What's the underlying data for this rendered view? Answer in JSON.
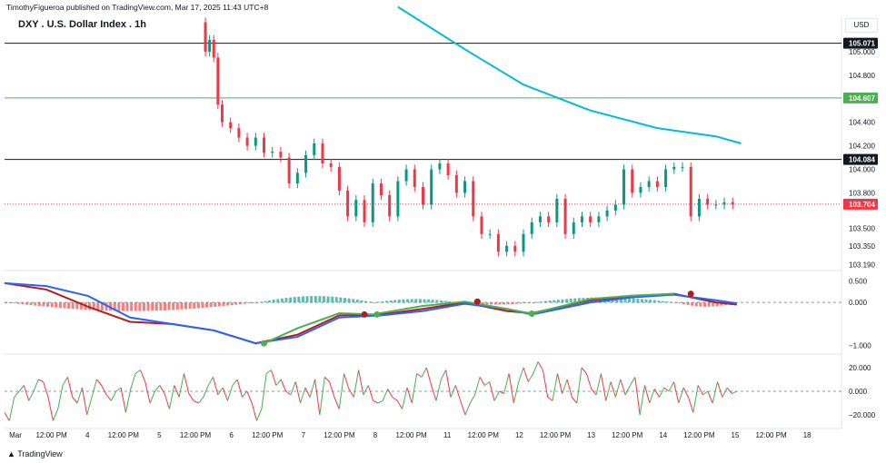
{
  "header": {
    "published": "TimothyFigueroa published on TradingView.com, Mar 17, 2025 11:43 UTC+8",
    "symbol": "DXY . U.S. Dollar Index . 1h",
    "currency": "USD"
  },
  "footer": {
    "brand": "TradingView"
  },
  "chart_data": [
    {
      "type": "candlestick",
      "pane": "price",
      "x_ticks": [
        "Mar",
        "12:00 PM",
        "4",
        "12:00 PM",
        "5",
        "12:00 PM",
        "6",
        "12:00 PM",
        "7",
        "12:00 PM",
        "8",
        "12:00 PM",
        "11",
        "12:00 PM",
        "12",
        "12:00 PM",
        "13",
        "12:00 PM",
        "14",
        "12:00 PM",
        "15",
        "12:00 PM",
        "18"
      ],
      "y_ticks": [
        105.0,
        104.8,
        104.4,
        104.2,
        104.0,
        103.8,
        103.5,
        103.35,
        103.19
      ],
      "y_tick_labels": [
        "105.000",
        "104.800",
        "104.400",
        "104.200",
        "104.000",
        "103.800",
        "103.500",
        "103.350",
        "103.190"
      ],
      "y_range": [
        103.14,
        105.3
      ],
      "levels": [
        {
          "value": 105.071,
          "label": "105.071",
          "color": "#131722"
        },
        {
          "value": 104.607,
          "label": "104.607",
          "color": "#4caf50"
        },
        {
          "value": 104.084,
          "label": "104.084",
          "color": "#131722"
        }
      ],
      "last_price": {
        "value": 103.704,
        "label": "103.704",
        "color": "#f23645"
      },
      "moving_average": {
        "color": "#00bcd4",
        "points": [
          [
            0.47,
            105.38
          ],
          [
            0.55,
            105.02
          ],
          [
            0.62,
            104.72
          ],
          [
            0.7,
            104.5
          ],
          [
            0.78,
            104.35
          ],
          [
            0.85,
            104.28
          ],
          [
            0.88,
            104.22
          ]
        ]
      },
      "close_path": [
        [
          0.235,
          105.25
        ],
        [
          0.24,
          105.0
        ],
        [
          0.245,
          105.1
        ],
        [
          0.25,
          104.95
        ],
        [
          0.255,
          104.55
        ],
        [
          0.26,
          104.4
        ],
        [
          0.27,
          104.35
        ],
        [
          0.28,
          104.27
        ],
        [
          0.29,
          104.2
        ],
        [
          0.3,
          104.27
        ],
        [
          0.31,
          104.14
        ],
        [
          0.32,
          104.15
        ],
        [
          0.33,
          104.1
        ],
        [
          0.34,
          103.88
        ],
        [
          0.35,
          103.97
        ],
        [
          0.36,
          104.12
        ],
        [
          0.37,
          104.22
        ],
        [
          0.38,
          104.05
        ],
        [
          0.39,
          104.02
        ],
        [
          0.4,
          103.82
        ],
        [
          0.41,
          103.6
        ],
        [
          0.42,
          103.74
        ],
        [
          0.43,
          103.55
        ],
        [
          0.44,
          103.88
        ],
        [
          0.45,
          103.78
        ],
        [
          0.46,
          103.6
        ],
        [
          0.47,
          103.9
        ],
        [
          0.48,
          104.0
        ],
        [
          0.49,
          103.85
        ],
        [
          0.5,
          103.7
        ],
        [
          0.51,
          104.0
        ],
        [
          0.52,
          104.05
        ],
        [
          0.53,
          103.95
        ],
        [
          0.54,
          103.8
        ],
        [
          0.55,
          103.9
        ],
        [
          0.56,
          103.6
        ],
        [
          0.57,
          103.45
        ],
        [
          0.58,
          103.45
        ],
        [
          0.59,
          103.3
        ],
        [
          0.6,
          103.35
        ],
        [
          0.61,
          103.3
        ],
        [
          0.62,
          103.45
        ],
        [
          0.63,
          103.55
        ],
        [
          0.64,
          103.6
        ],
        [
          0.65,
          103.55
        ],
        [
          0.66,
          103.75
        ],
        [
          0.67,
          103.45
        ],
        [
          0.68,
          103.55
        ],
        [
          0.69,
          103.6
        ],
        [
          0.7,
          103.55
        ],
        [
          0.71,
          103.6
        ],
        [
          0.72,
          103.65
        ],
        [
          0.73,
          103.7
        ],
        [
          0.74,
          104.0
        ],
        [
          0.75,
          103.8
        ],
        [
          0.76,
          103.85
        ],
        [
          0.77,
          103.9
        ],
        [
          0.78,
          103.85
        ],
        [
          0.79,
          104.0
        ],
        [
          0.8,
          104.02
        ],
        [
          0.81,
          104.02
        ],
        [
          0.82,
          103.6
        ],
        [
          0.83,
          103.75
        ],
        [
          0.84,
          103.7
        ],
        [
          0.85,
          103.7
        ],
        [
          0.86,
          103.72
        ],
        [
          0.87,
          103.7
        ]
      ]
    },
    {
      "type": "line",
      "pane": "macd",
      "y_ticks": [
        0.5,
        0.0,
        -1.0
      ],
      "y_tick_labels": [
        "0.500",
        "0.000",
        "−1.000"
      ],
      "y_range": [
        -1.2,
        0.7
      ],
      "series": [
        {
          "color": "#b71c1c",
          "points": [
            [
              0.0,
              0.45
            ],
            [
              0.05,
              0.3
            ],
            [
              0.1,
              -0.1
            ],
            [
              0.15,
              -0.45
            ],
            [
              0.2,
              -0.5
            ],
            [
              0.25,
              -0.65
            ],
            [
              0.3,
              -0.95
            ],
            [
              0.35,
              -0.75
            ],
            [
              0.4,
              -0.3
            ],
            [
              0.45,
              -0.28
            ],
            [
              0.5,
              -0.15
            ],
            [
              0.55,
              0.0
            ],
            [
              0.6,
              -0.2
            ],
            [
              0.63,
              -0.25
            ],
            [
              0.7,
              0.05
            ],
            [
              0.75,
              0.15
            ],
            [
              0.8,
              0.2
            ],
            [
              0.85,
              0.0
            ],
            [
              0.875,
              -0.05
            ]
          ]
        },
        {
          "color": "#2962ff",
          "points": [
            [
              0.0,
              0.45
            ],
            [
              0.05,
              0.38
            ],
            [
              0.1,
              0.15
            ],
            [
              0.15,
              -0.35
            ],
            [
              0.2,
              -0.5
            ],
            [
              0.25,
              -0.65
            ],
            [
              0.3,
              -0.95
            ],
            [
              0.35,
              -0.8
            ],
            [
              0.4,
              -0.35
            ],
            [
              0.45,
              -0.3
            ],
            [
              0.5,
              -0.2
            ],
            [
              0.55,
              -0.03
            ],
            [
              0.6,
              -0.15
            ],
            [
              0.63,
              -0.28
            ],
            [
              0.7,
              0.0
            ],
            [
              0.75,
              0.12
            ],
            [
              0.8,
              0.18
            ],
            [
              0.85,
              0.05
            ],
            [
              0.875,
              -0.02
            ]
          ]
        },
        {
          "color": "#4caf50",
          "points": [
            [
              0.31,
              -0.95
            ],
            [
              0.35,
              -0.6
            ],
            [
              0.4,
              -0.25
            ],
            [
              0.44,
              -0.28
            ],
            [
              0.5,
              -0.08
            ],
            [
              0.55,
              0.02
            ],
            [
              0.6,
              -0.15
            ],
            [
              0.63,
              -0.26
            ],
            [
              0.7,
              0.08
            ],
            [
              0.75,
              0.16
            ],
            [
              0.8,
              0.2
            ]
          ]
        }
      ],
      "histogram": [
        {
          "range": [
            0.0,
            0.3
          ],
          "sign": "neg",
          "peak": -0.2
        },
        {
          "range": [
            0.3,
            0.44
          ],
          "sign": "pos",
          "peak": 0.15
        },
        {
          "range": [
            0.44,
            0.54
          ],
          "sign": "pos",
          "peak": 0.08
        },
        {
          "range": [
            0.54,
            0.63
          ],
          "sign": "neg",
          "peak": -0.05
        },
        {
          "range": [
            0.63,
            0.8
          ],
          "sign": "pos",
          "peak": 0.12
        },
        {
          "range": [
            0.8,
            0.875
          ],
          "sign": "neg",
          "peak": -0.1
        }
      ],
      "markers": [
        {
          "x": 0.31,
          "y": -0.95,
          "color": "#4caf50"
        },
        {
          "x": 0.43,
          "y": -0.28,
          "color": "#b71c1c"
        },
        {
          "x": 0.445,
          "y": -0.28,
          "color": "#4caf50"
        },
        {
          "x": 0.565,
          "y": 0.02,
          "color": "#b71c1c"
        },
        {
          "x": 0.63,
          "y": -0.26,
          "color": "#4caf50"
        },
        {
          "x": 0.82,
          "y": 0.2,
          "color": "#b71c1c"
        }
      ]
    },
    {
      "type": "line",
      "pane": "oscillator",
      "y_ticks": [
        20.0,
        0.0,
        -20.0
      ],
      "y_tick_labels": [
        "20.000",
        "0.000",
        "−20.000"
      ],
      "y_range": [
        -30,
        30
      ],
      "series_up_color": "#4caf50",
      "series_down_color": "#f23645",
      "values": [
        -18,
        -25,
        -5,
        0,
        5,
        -8,
        0,
        10,
        8,
        -5,
        -25,
        -15,
        5,
        12,
        -5,
        -10,
        3,
        -20,
        -5,
        10,
        5,
        -3,
        -8,
        0,
        3,
        -18,
        2,
        15,
        18,
        8,
        -10,
        0,
        5,
        -2,
        -15,
        5,
        -5,
        15,
        -2,
        -8,
        -10,
        -5,
        5,
        12,
        -3,
        3,
        -8,
        5,
        10,
        -5,
        0,
        -10,
        -25,
        -15,
        15,
        18,
        5,
        10,
        0,
        -3,
        8,
        -10,
        3,
        -5,
        10,
        -20,
        12,
        8,
        -5,
        -15,
        15,
        2,
        -5,
        18,
        -3,
        5,
        -8,
        -10,
        -8,
        2,
        -5,
        -8,
        -15,
        3,
        -10,
        15,
        12,
        20,
        5,
        -8,
        10,
        18,
        -5,
        5,
        -8,
        -20,
        -10,
        -3,
        12,
        5,
        8,
        -8,
        0,
        -2,
        15,
        -10,
        8,
        20,
        8,
        15,
        25,
        18,
        -5,
        -8,
        15,
        -2,
        10,
        -5,
        -10,
        20,
        15,
        2,
        -3,
        15,
        -8,
        8,
        -5,
        10,
        -3,
        5,
        12,
        -20,
        5,
        -10,
        2,
        -5,
        3,
        0,
        8,
        -10,
        3,
        -5,
        -18,
        5,
        -3,
        0,
        -10,
        8,
        -5,
        3,
        -2,
        0
      ]
    }
  ]
}
